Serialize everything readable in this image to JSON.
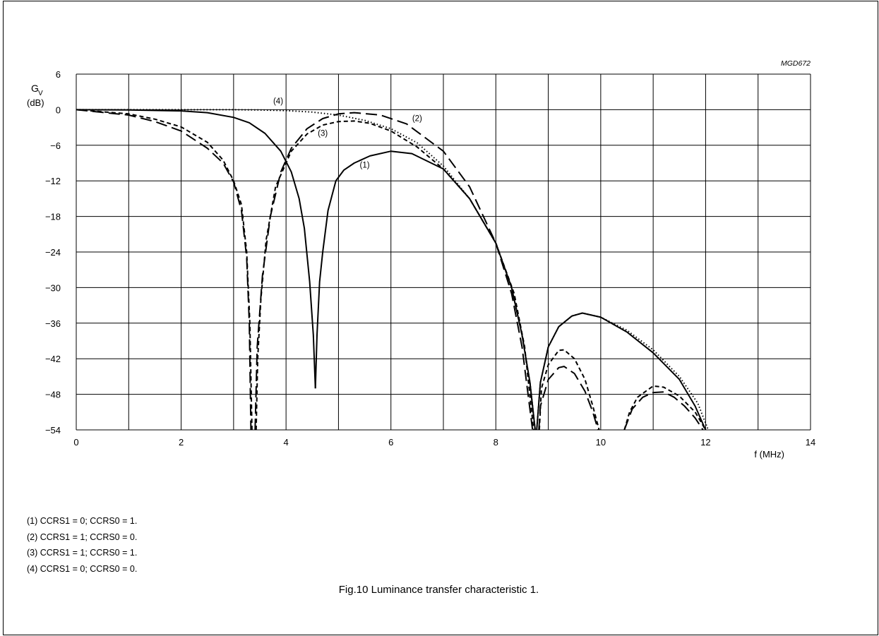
{
  "chart_data": {
    "type": "line",
    "code": "MGD672",
    "ylabel_main": "G",
    "ylabel_sub": "V",
    "ylabel_unit": "(dB)",
    "xlabel": "f  (MHz)",
    "xlim": [
      0,
      14
    ],
    "ylim": [
      -54,
      6
    ],
    "x_grid_step": 1,
    "y_grid_step": 6,
    "x_ticks": [
      "0",
      "2",
      "4",
      "6",
      "8",
      "10",
      "12",
      "14"
    ],
    "y_ticks": [
      "6",
      "0",
      "−6",
      "−12",
      "−18",
      "−24",
      "−30",
      "−36",
      "−42",
      "−48",
      "−54"
    ],
    "grid": true,
    "series": [
      {
        "name": "(1)",
        "style": "solid",
        "segments": [
          [
            [
              0,
              0
            ],
            [
              1,
              -0.03
            ],
            [
              2,
              -0.2
            ],
            [
              2.5,
              -0.5
            ],
            [
              3,
              -1.3
            ],
            [
              3.3,
              -2.2
            ],
            [
              3.6,
              -4
            ],
            [
              3.9,
              -7
            ],
            [
              4.1,
              -10.5
            ],
            [
              4.25,
              -15
            ],
            [
              4.35,
              -20
            ],
            [
              4.45,
              -29
            ],
            [
              4.52,
              -38
            ],
            [
              4.56,
              -47
            ]
          ],
          [
            [
              4.56,
              -47
            ],
            [
              4.59,
              -38
            ],
            [
              4.64,
              -29
            ],
            [
              4.7,
              -24
            ],
            [
              4.8,
              -17
            ],
            [
              4.95,
              -12
            ],
            [
              5.1,
              -10.2
            ],
            [
              5.3,
              -9
            ],
            [
              5.6,
              -7.8
            ],
            [
              6,
              -7
            ],
            [
              6.4,
              -7.4
            ],
            [
              7,
              -10
            ],
            [
              7.5,
              -15
            ],
            [
              8,
              -22.5
            ],
            [
              8.3,
              -30
            ],
            [
              8.5,
              -38
            ],
            [
              8.65,
              -46
            ],
            [
              8.75,
              -54
            ]
          ],
          [
            [
              8.78,
              -54
            ],
            [
              8.85,
              -46
            ],
            [
              9,
              -40
            ],
            [
              9.2,
              -36.6
            ],
            [
              9.45,
              -34.8
            ],
            [
              9.65,
              -34.3
            ],
            [
              10,
              -35
            ],
            [
              10.5,
              -37.5
            ],
            [
              11,
              -41
            ],
            [
              11.5,
              -45.5
            ],
            [
              11.8,
              -50
            ],
            [
              12,
              -54
            ]
          ]
        ]
      },
      {
        "name": "(2)",
        "style": "longdash",
        "segments": [
          [
            [
              0,
              0
            ],
            [
              1,
              -0.9
            ],
            [
              1.5,
              -2
            ],
            [
              2,
              -3.6
            ],
            [
              2.5,
              -6.5
            ],
            [
              2.8,
              -9
            ],
            [
              3,
              -12.2
            ],
            [
              3.15,
              -17
            ],
            [
              3.25,
              -25
            ],
            [
              3.3,
              -36
            ],
            [
              3.33,
              -54
            ]
          ],
          [
            [
              3.41,
              -54
            ],
            [
              3.45,
              -40
            ],
            [
              3.55,
              -28
            ],
            [
              3.7,
              -18
            ],
            [
              3.9,
              -10.5
            ],
            [
              4.1,
              -6.5
            ],
            [
              4.4,
              -3.2
            ],
            [
              4.7,
              -1.5
            ],
            [
              5,
              -0.7
            ],
            [
              5.3,
              -0.5
            ],
            [
              5.8,
              -0.9
            ],
            [
              6.3,
              -2.4
            ],
            [
              7,
              -7
            ],
            [
              7.5,
              -13
            ],
            [
              8,
              -22.5
            ],
            [
              8.3,
              -31
            ],
            [
              8.5,
              -40
            ],
            [
              8.7,
              -54
            ]
          ],
          [
            [
              8.82,
              -54
            ],
            [
              8.85,
              -50
            ],
            [
              9,
              -45.5
            ],
            [
              9.2,
              -43.5
            ],
            [
              9.3,
              -43.3
            ],
            [
              9.5,
              -44.5
            ],
            [
              9.7,
              -47.5
            ],
            [
              9.85,
              -51
            ],
            [
              9.95,
              -54
            ]
          ],
          [
            [
              10.45,
              -54
            ],
            [
              10.6,
              -50.5
            ],
            [
              10.8,
              -48.5
            ],
            [
              11,
              -47.7
            ],
            [
              11.2,
              -47.6
            ],
            [
              11.4,
              -48.5
            ],
            [
              11.6,
              -50
            ],
            [
              11.8,
              -52
            ],
            [
              11.95,
              -54
            ]
          ]
        ]
      },
      {
        "name": "(3)",
        "style": "shortdash",
        "segments": [
          [
            [
              0,
              0
            ],
            [
              1,
              -0.7
            ],
            [
              1.5,
              -1.6
            ],
            [
              2,
              -2.9
            ],
            [
              2.5,
              -5.5
            ],
            [
              2.8,
              -8.5
            ],
            [
              3,
              -12
            ],
            [
              3.15,
              -16
            ],
            [
              3.25,
              -24
            ],
            [
              3.31,
              -36
            ],
            [
              3.35,
              -54
            ]
          ],
          [
            [
              3.43,
              -54
            ],
            [
              3.46,
              -42
            ],
            [
              3.52,
              -32
            ],
            [
              3.62,
              -22
            ],
            [
              3.8,
              -13
            ],
            [
              4.1,
              -7
            ],
            [
              4.4,
              -4.1
            ],
            [
              4.7,
              -2.6
            ],
            [
              5,
              -2
            ],
            [
              5.3,
              -1.9
            ],
            [
              5.6,
              -2.3
            ],
            [
              6,
              -3.6
            ],
            [
              6.5,
              -6.3
            ],
            [
              7,
              -10
            ],
            [
              7.5,
              -15
            ],
            [
              8,
              -22.5
            ],
            [
              8.35,
              -31
            ],
            [
              8.55,
              -40
            ],
            [
              8.72,
              -54
            ]
          ],
          [
            [
              8.83,
              -54
            ],
            [
              8.87,
              -47
            ],
            [
              9,
              -43
            ],
            [
              9.2,
              -40.6
            ],
            [
              9.3,
              -40.5
            ],
            [
              9.5,
              -42
            ],
            [
              9.7,
              -45.5
            ],
            [
              9.85,
              -50
            ],
            [
              9.97,
              -54
            ]
          ],
          [
            [
              10.45,
              -54
            ],
            [
              10.55,
              -51
            ],
            [
              10.7,
              -48.5
            ],
            [
              11,
              -46.6
            ],
            [
              11.2,
              -46.8
            ],
            [
              11.5,
              -48.3
            ],
            [
              11.8,
              -51
            ],
            [
              12,
              -54
            ]
          ]
        ]
      },
      {
        "name": "(4)",
        "style": "dotted",
        "segments": [
          [
            [
              0,
              0
            ],
            [
              1,
              0
            ],
            [
              2,
              0
            ],
            [
              3,
              0
            ],
            [
              3.5,
              -0.05
            ],
            [
              4,
              -0.15
            ],
            [
              4.5,
              -0.4
            ],
            [
              5,
              -0.9
            ],
            [
              5.5,
              -1.8
            ],
            [
              6,
              -3.2
            ],
            [
              6.5,
              -5.6
            ],
            [
              7,
              -9.5
            ],
            [
              7.5,
              -15
            ],
            [
              8,
              -22.5
            ],
            [
              8.3,
              -30
            ],
            [
              8.5,
              -38
            ],
            [
              8.65,
              -46
            ],
            [
              8.75,
              -54
            ]
          ],
          [
            [
              8.78,
              -54
            ],
            [
              8.85,
              -46
            ],
            [
              9,
              -40
            ],
            [
              9.2,
              -36.6
            ],
            [
              9.45,
              -34.8
            ],
            [
              9.65,
              -34.3
            ],
            [
              10,
              -35
            ],
            [
              10.5,
              -37.2
            ],
            [
              11,
              -40.5
            ],
            [
              11.5,
              -45
            ],
            [
              11.85,
              -49.5
            ],
            [
              12.05,
              -54
            ]
          ]
        ]
      }
    ],
    "annotations": [
      {
        "text": "(4)",
        "x": 3.85,
        "y": 1.0
      },
      {
        "text": "(2)",
        "x": 6.5,
        "y": -1.9
      },
      {
        "text": "(3)",
        "x": 4.7,
        "y": -4.4
      },
      {
        "text": "(1)",
        "x": 5.5,
        "y": -9.8
      }
    ]
  },
  "notes": [
    "(1)   CCRS1 = 0; CCRS0 = 1.",
    "(2)   CCRS1 = 1; CCRS0 = 0.",
    "(3)   CCRS1 = 1; CCRS0 = 1.",
    "(4)   CCRS1 = 0; CCRS0 = 0."
  ],
  "caption": "Fig.10  Luminance transfer characteristic 1."
}
